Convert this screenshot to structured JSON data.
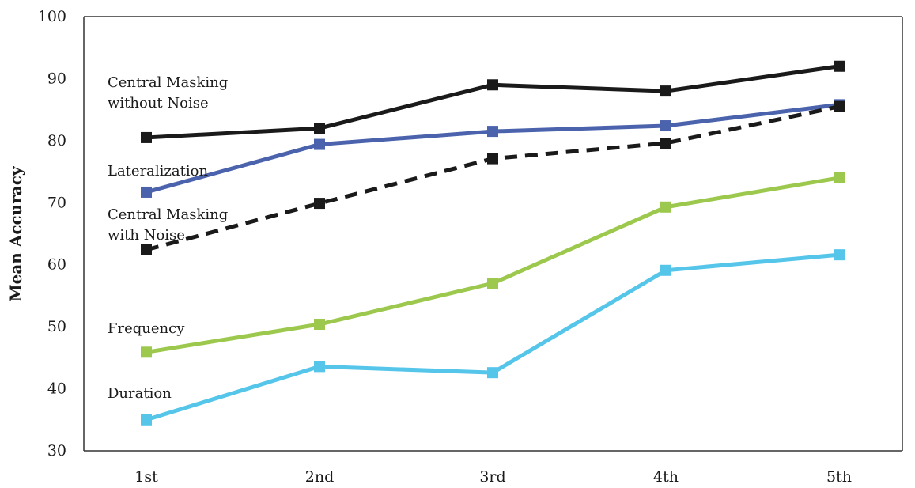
{
  "chart_data": {
    "type": "line",
    "title": "",
    "xlabel": "",
    "ylabel": "Mean Accuracy",
    "categories": [
      "1st",
      "2nd",
      "3rd",
      "4th",
      "5th"
    ],
    "yticks": [
      30,
      40,
      50,
      60,
      70,
      80,
      90,
      100
    ],
    "ylim": [
      30,
      100
    ],
    "grid": false,
    "legend": "inline labels at left",
    "series": [
      {
        "name": "Central Masking without Noise",
        "label_lines": [
          "Central Masking",
          "without Noise"
        ],
        "values": [
          80.5,
          82,
          89,
          88,
          92
        ],
        "color": "#1a1a1a",
        "dashed": false
      },
      {
        "name": "Lateralization",
        "label_lines": [
          "Lateralization"
        ],
        "values": [
          71.7,
          79.4,
          81.5,
          82.4,
          85.8
        ],
        "color": "#4b63ad",
        "dashed": false
      },
      {
        "name": "Central Masking with Noise",
        "label_lines": [
          "Central Masking",
          "with Noise"
        ],
        "values": [
          62.4,
          69.9,
          77.1,
          79.6,
          85.5
        ],
        "color": "#1a1a1a",
        "dashed": true
      },
      {
        "name": "Frequency",
        "label_lines": [
          "Frequency"
        ],
        "values": [
          45.9,
          50.4,
          57.0,
          69.3,
          74.0
        ],
        "color": "#9cc94d",
        "dashed": false
      },
      {
        "name": "Duration",
        "label_lines": [
          "Duration"
        ],
        "values": [
          35.0,
          43.6,
          42.6,
          59.1,
          61.6
        ],
        "color": "#55c5ea",
        "dashed": false
      }
    ]
  }
}
